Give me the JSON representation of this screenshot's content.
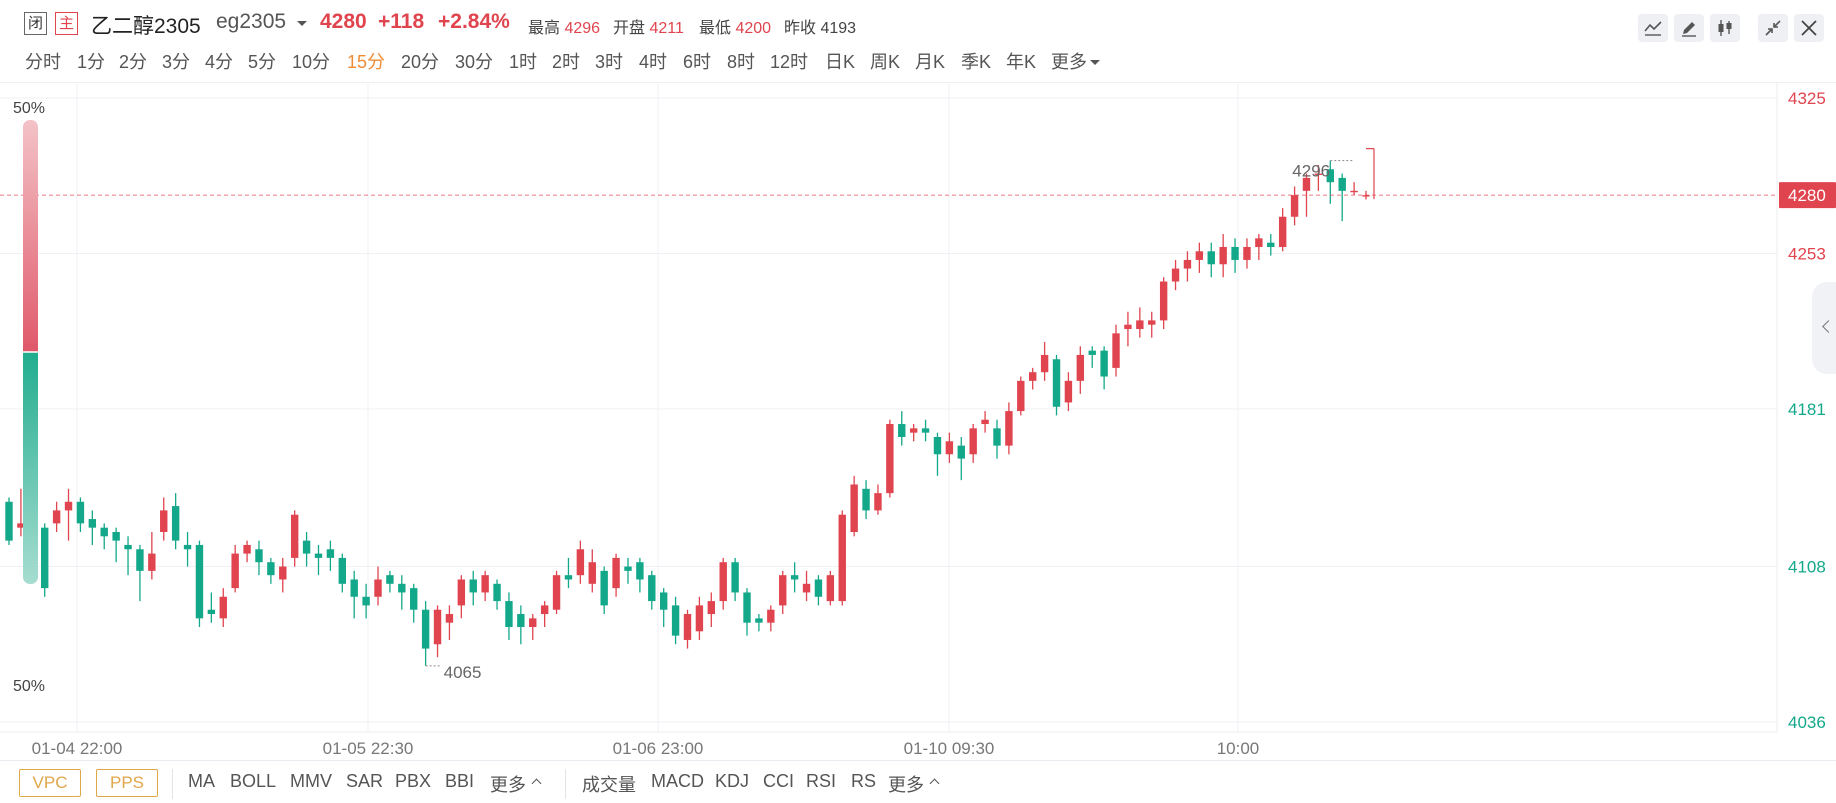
{
  "header": {
    "badge_closed": "闭",
    "badge_main": "主",
    "name": "乙二醇2305",
    "code": "eg2305",
    "price": "4280",
    "change": "+118",
    "change_pct": "+2.84%",
    "high_label": "最高",
    "high_value": "4296",
    "open_label": "开盘",
    "open_value": "4211",
    "low_label": "最低",
    "low_value": "4200",
    "prev_label": "昨收",
    "prev_value": "4193"
  },
  "toolbar_icons": [
    "line-chart-icon",
    "pencil-icon",
    "candle-icon",
    "shrink-icon",
    "close-icon"
  ],
  "periods": [
    "分时",
    "1分",
    "2分",
    "3分",
    "4分",
    "5分",
    "10分",
    "15分",
    "20分",
    "30分",
    "1时",
    "2时",
    "3时",
    "4时",
    "6时",
    "8时",
    "12时",
    "日K",
    "周K",
    "月K",
    "季K",
    "年K",
    "更多"
  ],
  "active_period": "15分",
  "colors": {
    "up": "#e0444e",
    "down": "#13a88a",
    "active": "#f08c36",
    "indicator": "#e0a64a"
  },
  "bottom": {
    "buttons": [
      "VPC",
      "PPS"
    ],
    "group1": [
      "MA",
      "BOLL",
      "MMV",
      "SAR",
      "PBX",
      "BBI",
      "更多"
    ],
    "group2": [
      "成交量",
      "MACD",
      "KDJ",
      "CCI",
      "RSI",
      "RS",
      "更多"
    ]
  },
  "chart_data": {
    "type": "candlestick",
    "y_ticks": [
      "4325",
      "4253",
      "4181",
      "4108",
      "4036"
    ],
    "ylim": [
      4036,
      4325
    ],
    "current_price": "4280",
    "x_tick_labels": [
      "01-04 22:00",
      "01-05 22:30",
      "01-06 23:00",
      "01-10 09:30",
      "10:00"
    ],
    "high_annotation": "4296",
    "low_annotation": "4065",
    "side_bar_top_label": "50%",
    "side_bar_bottom_label": "50%",
    "candles": [
      [
        4138,
        4120,
        4140,
        4118
      ],
      [
        4126,
        4128,
        4144,
        4122
      ],
      [
        4128,
        4126,
        4134,
        4116
      ],
      [
        4126,
        4098,
        4128,
        4094
      ],
      [
        4128,
        4134,
        4138,
        4124
      ],
      [
        4134,
        4138,
        4144,
        4120
      ],
      [
        4138,
        4128,
        4140,
        4124
      ],
      [
        4130,
        4126,
        4134,
        4118
      ],
      [
        4126,
        4122,
        4128,
        4116
      ],
      [
        4124,
        4120,
        4126,
        4110
      ],
      [
        4118,
        4116,
        4122,
        4104
      ],
      [
        4116,
        4106,
        4118,
        4092
      ],
      [
        4106,
        4114,
        4124,
        4102
      ],
      [
        4124,
        4134,
        4140,
        4120
      ],
      [
        4136,
        4120,
        4142,
        4116
      ],
      [
        4118,
        4116,
        4124,
        4108
      ],
      [
        4118,
        4084,
        4120,
        4080
      ],
      [
        4088,
        4086,
        4096,
        4082
      ],
      [
        4084,
        4094,
        4098,
        4080
      ],
      [
        4098,
        4114,
        4118,
        4096
      ],
      [
        4114,
        4118,
        4120,
        4110
      ],
      [
        4116,
        4110,
        4120,
        4104
      ],
      [
        4110,
        4104,
        4112,
        4100
      ],
      [
        4102,
        4108,
        4112,
        4096
      ],
      [
        4112,
        4132,
        4134,
        4108
      ],
      [
        4120,
        4114,
        4124,
        4108
      ],
      [
        4114,
        4112,
        4118,
        4104
      ],
      [
        4116,
        4112,
        4120,
        4106
      ],
      [
        4112,
        4100,
        4114,
        4096
      ],
      [
        4102,
        4094,
        4106,
        4084
      ],
      [
        4094,
        4090,
        4100,
        4084
      ],
      [
        4094,
        4102,
        4108,
        4090
      ],
      [
        4104,
        4100,
        4106,
        4096
      ],
      [
        4100,
        4096,
        4104,
        4088
      ],
      [
        4098,
        4088,
        4100,
        4082
      ],
      [
        4088,
        4070,
        4092,
        4062
      ],
      [
        4072,
        4088,
        4090,
        4066
      ],
      [
        4082,
        4086,
        4090,
        4074
      ],
      [
        4090,
        4102,
        4104,
        4084
      ],
      [
        4102,
        4096,
        4106,
        4090
      ],
      [
        4096,
        4104,
        4106,
        4092
      ],
      [
        4100,
        4092,
        4102,
        4088
      ],
      [
        4092,
        4080,
        4096,
        4074
      ],
      [
        4086,
        4080,
        4090,
        4072
      ],
      [
        4080,
        4084,
        4086,
        4074
      ],
      [
        4086,
        4090,
        4092,
        4080
      ],
      [
        4088,
        4104,
        4106,
        4086
      ],
      [
        4104,
        4102,
        4112,
        4098
      ],
      [
        4104,
        4116,
        4120,
        4100
      ],
      [
        4100,
        4110,
        4116,
        4096
      ],
      [
        4106,
        4090,
        4108,
        4086
      ],
      [
        4098,
        4112,
        4114,
        4094
      ],
      [
        4108,
        4106,
        4112,
        4100
      ],
      [
        4110,
        4102,
        4112,
        4096
      ],
      [
        4104,
        4092,
        4106,
        4088
      ],
      [
        4096,
        4088,
        4098,
        4080
      ],
      [
        4090,
        4076,
        4094,
        4072
      ],
      [
        4074,
        4086,
        4088,
        4070
      ],
      [
        4078,
        4090,
        4094,
        4074
      ],
      [
        4086,
        4092,
        4096,
        4080
      ],
      [
        4092,
        4110,
        4112,
        4088
      ],
      [
        4110,
        4096,
        4112,
        4092
      ],
      [
        4096,
        4082,
        4098,
        4076
      ],
      [
        4084,
        4082,
        4086,
        4078
      ],
      [
        4082,
        4088,
        4090,
        4078
      ],
      [
        4090,
        4104,
        4106,
        4086
      ],
      [
        4104,
        4102,
        4110,
        4096
      ],
      [
        4096,
        4100,
        4106,
        4092
      ],
      [
        4102,
        4094,
        4104,
        4090
      ],
      [
        4092,
        4104,
        4106,
        4090
      ],
      [
        4092,
        4132,
        4134,
        4090
      ],
      [
        4124,
        4146,
        4150,
        4122
      ],
      [
        4144,
        4134,
        4148,
        4130
      ],
      [
        4134,
        4142,
        4146,
        4132
      ],
      [
        4142,
        4174,
        4176,
        4140
      ],
      [
        4174,
        4168,
        4180,
        4164
      ],
      [
        4170,
        4172,
        4174,
        4166
      ],
      [
        4172,
        4170,
        4176,
        4166
      ],
      [
        4168,
        4160,
        4170,
        4150
      ],
      [
        4160,
        4166,
        4170,
        4156
      ],
      [
        4164,
        4158,
        4168,
        4148
      ],
      [
        4160,
        4172,
        4174,
        4156
      ],
      [
        4174,
        4176,
        4180,
        4170
      ],
      [
        4172,
        4164,
        4176,
        4158
      ],
      [
        4164,
        4180,
        4184,
        4160
      ],
      [
        4180,
        4194,
        4196,
        4178
      ],
      [
        4194,
        4198,
        4200,
        4190
      ],
      [
        4198,
        4206,
        4212,
        4194
      ],
      [
        4204,
        4182,
        4206,
        4178
      ],
      [
        4184,
        4194,
        4198,
        4180
      ],
      [
        4194,
        4206,
        4210,
        4188
      ],
      [
        4208,
        4206,
        4210,
        4200
      ],
      [
        4208,
        4196,
        4210,
        4190
      ],
      [
        4200,
        4216,
        4220,
        4196
      ],
      [
        4218,
        4220,
        4226,
        4210
      ],
      [
        4218,
        4222,
        4228,
        4214
      ],
      [
        4220,
        4222,
        4226,
        4214
      ],
      [
        4222,
        4240,
        4242,
        4218
      ],
      [
        4240,
        4246,
        4250,
        4236
      ],
      [
        4246,
        4250,
        4254,
        4240
      ],
      [
        4250,
        4254,
        4258,
        4244
      ],
      [
        4254,
        4248,
        4258,
        4242
      ],
      [
        4248,
        4256,
        4262,
        4242
      ],
      [
        4256,
        4250,
        4260,
        4244
      ],
      [
        4250,
        4256,
        4260,
        4246
      ],
      [
        4256,
        4260,
        4262,
        4250
      ],
      [
        4258,
        4256,
        4262,
        4252
      ],
      [
        4256,
        4270,
        4274,
        4254
      ],
      [
        4270,
        4280,
        4284,
        4266
      ],
      [
        4282,
        4288,
        4290,
        4270
      ],
      [
        4290,
        4290,
        4294,
        4282
      ],
      [
        4292,
        4286,
        4296,
        4276
      ],
      [
        4288,
        4282,
        4290,
        4268
      ],
      [
        4282,
        4282,
        4286,
        4280
      ],
      [
        4280,
        4280,
        4282,
        4278
      ]
    ]
  }
}
